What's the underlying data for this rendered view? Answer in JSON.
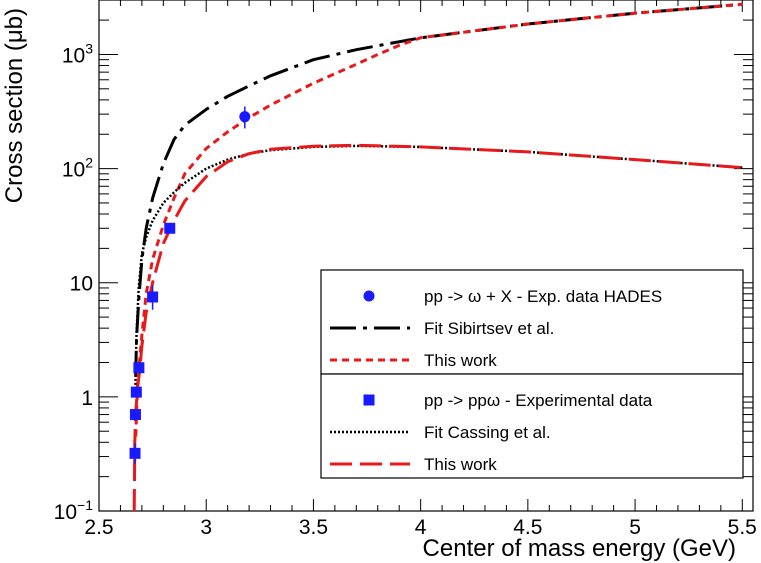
{
  "chart_data": {
    "type": "line",
    "title": "",
    "xlabel": "Center of mass energy (GeV)",
    "ylabel": "Cross section (μb)",
    "yscale": "log",
    "xlim": [
      2.5,
      5.55
    ],
    "ylim": [
      0.1,
      3000
    ],
    "x_ticks": [
      "2.5",
      "3",
      "3.5",
      "4",
      "4.5",
      "5",
      "5.5"
    ],
    "x_tick_values": [
      2.5,
      3,
      3.5,
      4,
      4.5,
      5,
      5.5
    ],
    "y_ticks": [
      {
        "value": 0.1,
        "base": "10",
        "exp": "−1",
        "label": ""
      },
      {
        "value": 1,
        "base": "",
        "exp": "",
        "label": "1"
      },
      {
        "value": 10,
        "base": "",
        "exp": "",
        "label": "10"
      },
      {
        "value": 100,
        "base": "10",
        "exp": "2",
        "label": ""
      },
      {
        "value": 1000,
        "base": "10",
        "exp": "3",
        "label": ""
      }
    ],
    "series": [
      {
        "name": "Fit Sibirtsev et al.",
        "style": "longdashdot",
        "color": "#000000",
        "x": [
          2.671,
          2.675,
          2.685,
          2.7,
          2.72,
          2.75,
          2.8,
          2.85,
          2.9,
          3.0,
          3.1,
          3.2,
          3.3,
          3.5,
          3.7,
          4.0,
          4.5,
          5.0,
          5.5
        ],
        "y": [
          1.5,
          3.2,
          7,
          16,
          30,
          55,
          110,
          180,
          240,
          330,
          430,
          530,
          650,
          900,
          1100,
          1400,
          1850,
          2300,
          2750
        ]
      },
      {
        "name": "This work (pp -> ω + X)",
        "style": "dash",
        "color": "#e8191b",
        "x": [
          2.671,
          2.68,
          2.7,
          2.72,
          2.75,
          2.8,
          2.85,
          2.9,
          3.0,
          3.1,
          3.2,
          3.3,
          3.5,
          3.7,
          3.8,
          3.9,
          4.0,
          4.5,
          5.0,
          5.5
        ],
        "y": [
          0.45,
          1.3,
          3.5,
          8,
          16,
          32,
          55,
          90,
          150,
          210,
          280,
          360,
          560,
          820,
          1000,
          1200,
          1400,
          1850,
          2300,
          2750
        ]
      },
      {
        "name": "Fit Cassing et al.",
        "style": "dot",
        "color": "#000000",
        "x": [
          2.669,
          2.675,
          2.685,
          2.7,
          2.72,
          2.75,
          2.8,
          2.85,
          2.9,
          3.0,
          3.1,
          3.2,
          3.3,
          3.5,
          3.7,
          4.0,
          4.5,
          5.0,
          5.5
        ],
        "y": [
          1.0,
          3.5,
          9,
          18,
          25,
          35,
          50,
          62,
          75,
          100,
          120,
          135,
          145,
          155,
          158,
          155,
          140,
          120,
          102
        ]
      },
      {
        "name": "This work (pp -> ppω)",
        "style": "longdash",
        "color": "#e8191b",
        "x": [
          2.664,
          2.667,
          2.67,
          2.675,
          2.68,
          2.69,
          2.7,
          2.72,
          2.75,
          2.8,
          2.85,
          2.9,
          3.0,
          3.1,
          3.2,
          3.3,
          3.5,
          3.7,
          4.0,
          4.5,
          5.0,
          5.5
        ],
        "y": [
          0.1,
          0.4,
          0.7,
          0.9,
          1.2,
          1.7,
          2.8,
          5.5,
          10,
          22,
          35,
          52,
          85,
          115,
          135,
          148,
          157,
          160,
          155,
          140,
          120,
          102
        ]
      }
    ],
    "points": [
      {
        "name": "pp -> ω + X - Exp. data HADES",
        "marker": "circle",
        "color": "#1a1aff",
        "x": [
          3.18
        ],
        "y": [
          285
        ],
        "err_low": [
          225
        ],
        "err_high": [
          350
        ]
      },
      {
        "name": "pp -> ppω  - Experimental data",
        "marker": "square",
        "color": "#1a1aff",
        "x": [
          2.668,
          2.67,
          2.674,
          2.686,
          2.75,
          2.83
        ],
        "y": [
          0.32,
          0.7,
          1.1,
          1.8,
          7.5,
          30
        ],
        "err_low": [
          0.26,
          0.62,
          1.0,
          1.6,
          5.8,
          28
        ],
        "err_high": [
          0.39,
          0.78,
          1.2,
          2.0,
          9.5,
          32
        ]
      }
    ],
    "legend": {
      "position": "bottom-right",
      "groups": [
        [
          {
            "label": "pp -> ω + X - Exp. data HADES",
            "kind": "marker",
            "marker": "circle",
            "color": "#1a1aff"
          },
          {
            "label": "Fit Sibirtsev et al.",
            "kind": "line",
            "style": "longdashdot",
            "color": "#000000"
          },
          {
            "label": "This work",
            "kind": "line",
            "style": "dash",
            "color": "#e8191b"
          }
        ],
        [
          {
            "label": "pp -> ppω  - Experimental data",
            "kind": "marker",
            "marker": "square",
            "color": "#1a1aff"
          },
          {
            "label": "Fit Cassing et al.",
            "kind": "line",
            "style": "dot",
            "color": "#000000"
          },
          {
            "label": "This work",
            "kind": "line",
            "style": "longdash",
            "color": "#e8191b"
          }
        ]
      ]
    }
  }
}
